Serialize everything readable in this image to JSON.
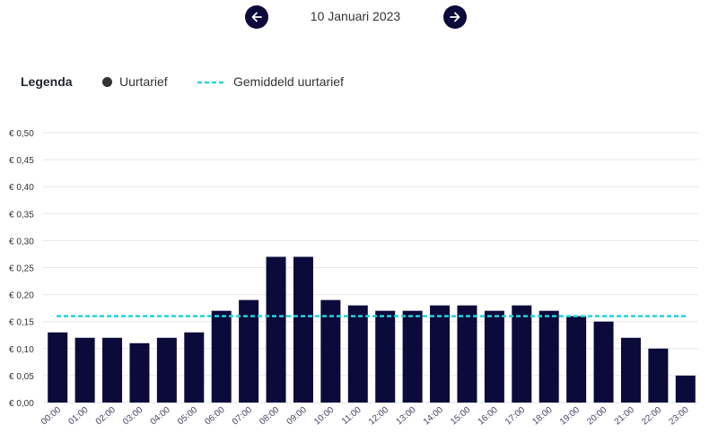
{
  "navigation": {
    "date": "10 Januari 2023",
    "prev_icon": "arrow-left-icon",
    "next_icon": "arrow-right-icon"
  },
  "legend": {
    "title": "Legenda",
    "items": [
      {
        "label": "Uurtarief",
        "symbol": "dot",
        "color": "#333333"
      },
      {
        "label": "Gemiddeld uurtarief",
        "symbol": "dashed-line",
        "color": "#22d3dd"
      }
    ]
  },
  "colors": {
    "bar": "#0b0a3a",
    "average_line": "#22d3dd",
    "nav_button": "#0b0a3a",
    "grid": "#e6e6e6"
  },
  "chart_data": {
    "type": "bar",
    "categories": [
      "00:00",
      "01:00",
      "02:00",
      "03:00",
      "04:00",
      "05:00",
      "06:00",
      "07:00",
      "08:00",
      "09:00",
      "10:00",
      "11:00",
      "12:00",
      "13:00",
      "14:00",
      "15:00",
      "16:00",
      "17:00",
      "18:00",
      "19:00",
      "20:00",
      "21:00",
      "22:00",
      "23:00"
    ],
    "series": [
      {
        "name": "Uurtarief",
        "values": [
          0.13,
          0.12,
          0.12,
          0.11,
          0.12,
          0.13,
          0.17,
          0.19,
          0.27,
          0.27,
          0.19,
          0.18,
          0.17,
          0.17,
          0.18,
          0.18,
          0.17,
          0.18,
          0.17,
          0.16,
          0.15,
          0.12,
          0.1,
          0.05
        ]
      }
    ],
    "average": 0.16,
    "ylim": [
      0,
      0.5
    ],
    "yticks": [
      0,
      0.05,
      0.1,
      0.15,
      0.2,
      0.25,
      0.3,
      0.35,
      0.4,
      0.45,
      0.5
    ],
    "ytick_labels": [
      "€ 0,00",
      "€ 0,05",
      "€ 0,10",
      "€ 0,15",
      "€ 0,20",
      "€ 0,25",
      "€ 0,30",
      "€ 0,35",
      "€ 0,40",
      "€ 0,45",
      "€ 0,50"
    ],
    "grid": true,
    "xlabel_rotation": "diagonal",
    "legend_position": "top-left"
  }
}
